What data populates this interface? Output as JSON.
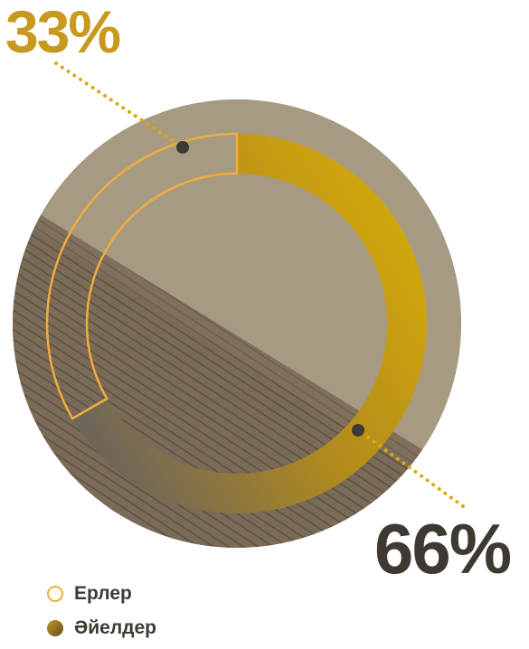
{
  "chart_data": {
    "type": "pie",
    "style": "donut",
    "categories": [
      "Ерлер",
      "Әйелдер"
    ],
    "values": [
      33,
      66
    ],
    "value_labels": [
      "33%",
      "66%"
    ],
    "series_colors": {
      "Ерлер": "#f0ac3c",
      "Әйелдер": "#d9ab0a"
    },
    "label_colors": {
      "Ерлер": "#c9981e",
      "Әйелдер": "#3e3a31"
    },
    "legend_position": "bottom-left",
    "background": "aerial field photo"
  },
  "legend": {
    "items": [
      {
        "label": "Ерлер",
        "style": "outline",
        "color": "#f0ac3c"
      },
      {
        "label": "Әйелдер",
        "style": "filled",
        "color": "#c49a1a"
      }
    ]
  }
}
